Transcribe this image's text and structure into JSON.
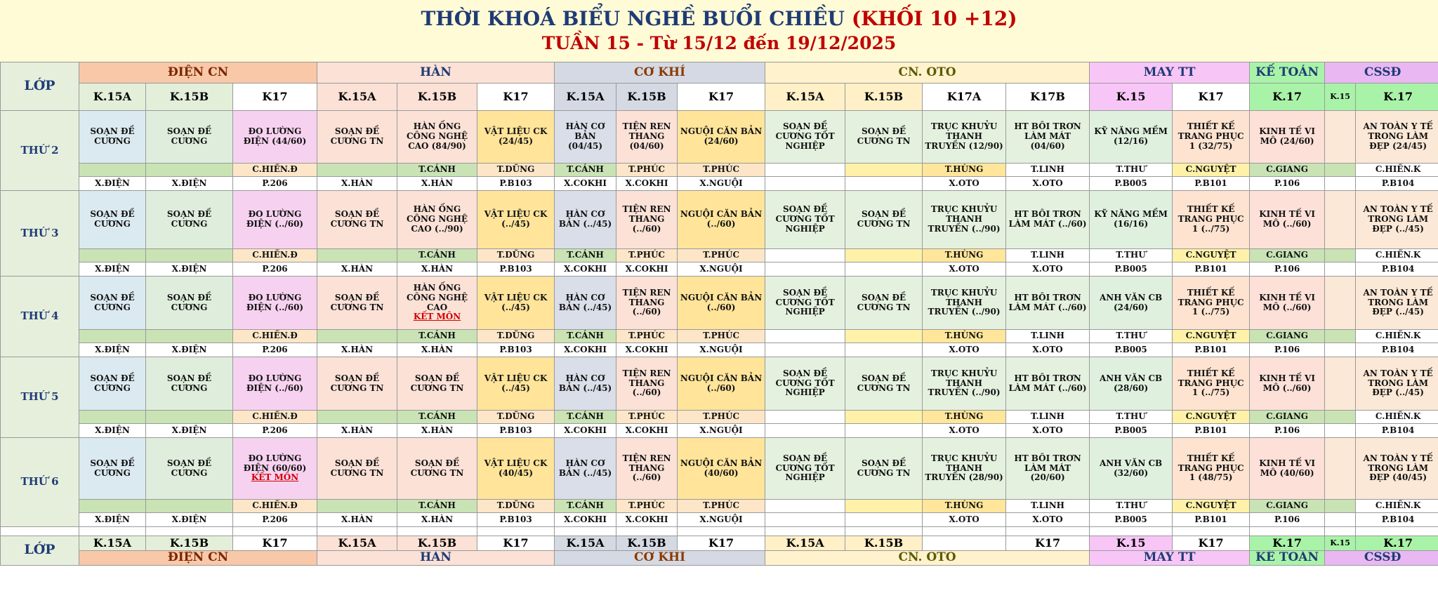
{
  "title": {
    "line1_main": "THỜI KHOÁ BIỂU NGHỀ BUỔI CHIỀU",
    "line1_red": "(KHỐI 10 +12)",
    "line2": "TUẦN 15 - Từ 15/12 đến 19/12/2025"
  },
  "lop_label": "LỚP",
  "groups": [
    "ĐIỆN CN",
    "HÀN",
    "CƠ KHÍ",
    "CN. OTO",
    "MAY TT",
    "KẾ TOÁN",
    "CSSĐ"
  ],
  "classes": [
    "K.15A",
    "K.15B",
    "K17",
    "K.15A",
    "K.15B",
    "K17",
    "K.15A",
    "K.15B",
    "K17",
    "K.15A",
    "K.15B",
    "K17A",
    "K17B",
    "K.15",
    "K17",
    "K.17",
    "K.15",
    "K.17"
  ],
  "footer_classes": [
    "K.15A",
    "K.15B",
    "K17",
    "K.15A",
    "K.15B",
    "K17",
    "K.15A",
    "K.15B",
    "K17",
    "K.15A",
    "K.15B",
    "",
    "K17",
    "K.15",
    "K17",
    "K.17",
    "K.15",
    "K.17"
  ],
  "teachers": [
    "",
    "",
    "C.HIỀN.Đ",
    "",
    "T.CẢNH",
    "T.DŨNG",
    "T.CẢNH",
    "T.PHÚC",
    "T.PHÚC",
    "",
    "",
    "T.HÙNG",
    "T.LINH",
    "T.THƯ",
    "C.NGUYỆT",
    "C.GIANG",
    "",
    "C.HIỀN.K"
  ],
  "rooms": [
    "X.ĐIỆN",
    "X.ĐIỆN",
    "P.206",
    "X.HÀN",
    "X.HÀN",
    "P.B103",
    "X.COKHI",
    "X.COKHI",
    "X.NGUỘI",
    "",
    "",
    "X.OTO",
    "X.OTO",
    "P.B005",
    "P.B101",
    "P.106",
    "",
    "P.B104"
  ],
  "days": [
    {
      "name": "THỨ 2",
      "subjects": [
        "SOẠN ĐỀ CƯƠNG",
        "SOẠN ĐỀ CƯƠNG",
        "ĐO LƯỜNG ĐIỆN (44/60)",
        "SOẠN ĐỀ CƯƠNG TN",
        "HÀN ỐNG CÔNG NGHỆ CAO (84/90)",
        "VẬT LIỆU CK (24/45)",
        "HÀN CƠ BẢN (04/45)",
        "TIỆN REN THANG (04/60)",
        "NGUỘI CĂN BẢN (24/60)",
        "SOẠN ĐỀ CƯƠNG TỐT NGHIỆP",
        "SOẠN ĐỀ CƯƠNG TN",
        "TRỤC KHUỶU THANH TRUYỀN (12/90)",
        "HT BÔI TRƠN LÀM MÁT (04/60)",
        "KỸ NĂNG MỀM (12/16)",
        "THIẾT KẾ TRANG PHỤC 1 (32/75)",
        "KINH TẾ VI MÔ (24/60)",
        "",
        "AN TOÀN Y TẾ TRONG LÀM ĐẸP (24/45)"
      ],
      "status": [
        "",
        "",
        "",
        "",
        "",
        "",
        "",
        "",
        "",
        "",
        "",
        "",
        "",
        "",
        "",
        "",
        "",
        ""
      ]
    },
    {
      "name": "THỨ 3",
      "subjects": [
        "SOẠN ĐỀ CƯƠNG",
        "SOẠN ĐỀ CƯƠNG",
        "ĐO LƯỜNG ĐIỆN (../60)",
        "SOẠN ĐỀ CƯƠNG TN",
        "HÀN ỐNG CÔNG NGHỆ CAO (../90)",
        "VẬT LIỆU CK (../45)",
        "HÀN CƠ BẢN (../45)",
        "TIỆN REN THANG (../60)",
        "NGUỘI CĂN BẢN (../60)",
        "SOẠN ĐỀ CƯƠNG TỐT NGHIỆP",
        "SOẠN ĐỀ CƯƠNG TN",
        "TRỤC KHUỶU THANH TRUYỀN (../90)",
        "HT BÔI TRƠN LÀM MÁT (../60)",
        "KỸ NĂNG MỀM (16/16)",
        "THIẾT KẾ TRANG PHỤC 1 (../75)",
        "KINH TẾ VI MÔ (../60)",
        "",
        "AN TOÀN Y TẾ TRONG LÀM ĐẸP (../45)"
      ],
      "status": [
        "",
        "",
        "",
        "",
        "",
        "",
        "",
        "",
        "",
        "",
        "",
        "",
        "",
        "",
        "",
        "",
        "",
        ""
      ]
    },
    {
      "name": "THỨ 4",
      "subjects": [
        "SOẠN ĐỀ CƯƠNG",
        "SOẠN ĐỀ CƯƠNG",
        "ĐO LƯỜNG ĐIỆN (../60)",
        "SOẠN ĐỀ CƯƠNG TN",
        "HÀN ỐNG CÔNG NGHỆ CAO",
        "VẬT LIỆU CK (../45)",
        "HÀN CƠ BẢN (../45)",
        "TIỆN REN THANG (../60)",
        "NGUỘI CĂN BẢN (../60)",
        "SOẠN ĐỀ CƯƠNG TỐT NGHIỆP",
        "SOẠN ĐỀ CƯƠNG TN",
        "TRỤC KHUỶU THANH TRUYỀN (../90)",
        "HT BÔI TRƠN LÀM MÁT (../60)",
        "ANH VĂN CB (24/60)",
        "THIẾT KẾ TRANG PHỤC 1 (../75)",
        "KINH TẾ VI MÔ (../60)",
        "",
        "AN TOÀN Y TẾ TRONG LÀM ĐẸP (../45)"
      ],
      "status": [
        "",
        "",
        "",
        "",
        "KẾT MÔN",
        "",
        "",
        "",
        "",
        "",
        "",
        "",
        "",
        "",
        "",
        "",
        "",
        ""
      ]
    },
    {
      "name": "THỨ 5",
      "subjects": [
        "SOẠN ĐỀ CƯƠNG",
        "SOẠN ĐỀ CƯƠNG",
        "ĐO LƯỜNG ĐIỆN (../60)",
        "SOẠN ĐỀ CƯƠNG TN",
        "SOẠN ĐỀ CƯƠNG TN",
        "VẬT LIỆU CK (../45)",
        "HÀN CƠ BẢN (../45)",
        "TIỆN REN THANG (../60)",
        "NGUỘI CĂN BẢN (../60)",
        "SOẠN ĐỀ CƯƠNG TỐT NGHIỆP",
        "SOẠN ĐỀ CƯƠNG TN",
        "TRỤC KHUỶU THANH TRUYỀN (../90)",
        "HT BÔI TRƠN LÀM MÁT (../60)",
        "ANH VĂN CB (28/60)",
        "THIẾT KẾ TRANG PHỤC 1 (../75)",
        "KINH TẾ VI MÔ (../60)",
        "",
        "AN TOÀN Y TẾ TRONG LÀM ĐẸP (../45)"
      ],
      "status": [
        "",
        "",
        "",
        "",
        "",
        "",
        "",
        "",
        "",
        "",
        "",
        "",
        "",
        "",
        "",
        "",
        "",
        ""
      ]
    },
    {
      "name": "THỨ 6",
      "subjects": [
        "SOẠN ĐỀ CƯƠNG",
        "SOẠN ĐỀ CƯƠNG",
        "ĐO LƯỜNG ĐIỆN (60/60)",
        "SOẠN ĐỀ CƯƠNG TN",
        "SOẠN ĐỀ CƯƠNG TN",
        "VẬT LIỆU CK (40/45)",
        "HÀN CƠ BẢN (../45)",
        "TIỆN REN THANG (../60)",
        "NGUỘI CĂN BẢN (40/60)",
        "SOẠN ĐỀ CƯƠNG TỐT NGHIỆP",
        "SOẠN ĐỀ CƯƠNG TN",
        "TRỤC KHUỶU THANH TRUYỀN (28/90)",
        "HT BÔI TRƠN LÀM MÁT (20/60)",
        "ANH VĂN CB (32/60)",
        "THIẾT KẾ TRANG PHỤC 1 (48/75)",
        "KINH TẾ VI MÔ (40/60)",
        "",
        "AN TOÀN Y TẾ TRONG LÀM ĐẸP (40/45)"
      ],
      "status": [
        "",
        "",
        "KẾT MÔN",
        "",
        "",
        "",
        "",
        "",
        "",
        "",
        "",
        "",
        "",
        "",
        "",
        "",
        "",
        ""
      ]
    }
  ]
}
